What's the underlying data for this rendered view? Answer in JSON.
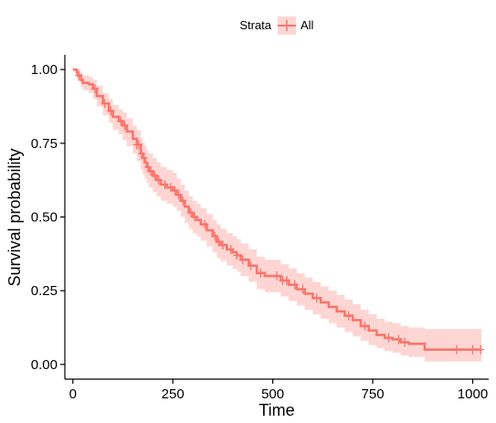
{
  "chart_data": {
    "type": "line",
    "subtype": "kaplan-meier step curve with confidence band and censor marks",
    "xlabel": "Time",
    "ylabel": "Survival probability",
    "xlim": [
      -20,
      1040
    ],
    "ylim": [
      -0.05,
      1.05
    ],
    "x_ticks": [
      0,
      250,
      500,
      750,
      1000
    ],
    "x_tick_labels": [
      "0",
      "250",
      "500",
      "750",
      "1000"
    ],
    "y_ticks": [
      0.0,
      0.25,
      0.5,
      0.75,
      1.0
    ],
    "y_tick_labels": [
      "0.00",
      "0.25",
      "0.50",
      "0.75",
      "1.00"
    ],
    "grid": false,
    "legend": {
      "position": "top",
      "title": "Strata",
      "entries": [
        "All"
      ]
    },
    "series": [
      {
        "name": "All",
        "color": "#F8766D",
        "band_color": "#F8766D",
        "band_opacity": 0.3,
        "x": [
          0,
          10,
          12,
          20,
          25,
          40,
          50,
          60,
          75,
          90,
          100,
          115,
          125,
          135,
          150,
          160,
          170,
          175,
          180,
          185,
          190,
          200,
          210,
          220,
          235,
          250,
          260,
          270,
          280,
          290,
          300,
          310,
          320,
          335,
          350,
          360,
          370,
          385,
          400,
          410,
          420,
          440,
          460,
          480,
          500,
          520,
          540,
          560,
          580,
          600,
          620,
          640,
          660,
          680,
          700,
          720,
          740,
          760,
          780,
          800,
          820,
          840,
          880,
          1000,
          1022
        ],
        "y": [
          1.0,
          0.99,
          0.98,
          0.965,
          0.955,
          0.95,
          0.935,
          0.91,
          0.885,
          0.86,
          0.84,
          0.825,
          0.81,
          0.79,
          0.765,
          0.745,
          0.715,
          0.7,
          0.685,
          0.67,
          0.655,
          0.64,
          0.625,
          0.61,
          0.6,
          0.59,
          0.575,
          0.555,
          0.535,
          0.515,
          0.5,
          0.49,
          0.475,
          0.455,
          0.435,
          0.415,
          0.405,
          0.39,
          0.38,
          0.37,
          0.355,
          0.335,
          0.31,
          0.3,
          0.3,
          0.285,
          0.27,
          0.255,
          0.24,
          0.225,
          0.21,
          0.195,
          0.18,
          0.165,
          0.15,
          0.13,
          0.115,
          0.1,
          0.09,
          0.085,
          0.075,
          0.07,
          0.05,
          0.05,
          0.05
        ],
        "lower": [
          1.0,
          0.97,
          0.96,
          0.94,
          0.93,
          0.92,
          0.9,
          0.875,
          0.845,
          0.82,
          0.795,
          0.78,
          0.76,
          0.74,
          0.715,
          0.69,
          0.66,
          0.645,
          0.63,
          0.615,
          0.6,
          0.585,
          0.57,
          0.555,
          0.545,
          0.535,
          0.52,
          0.5,
          0.48,
          0.46,
          0.445,
          0.435,
          0.42,
          0.4,
          0.38,
          0.36,
          0.35,
          0.335,
          0.325,
          0.315,
          0.3,
          0.28,
          0.255,
          0.245,
          0.245,
          0.23,
          0.215,
          0.2,
          0.185,
          0.17,
          0.155,
          0.14,
          0.125,
          0.11,
          0.095,
          0.08,
          0.065,
          0.055,
          0.045,
          0.04,
          0.03,
          0.025,
          0.01,
          0.01,
          0.01
        ],
        "upper": [
          1.0,
          1.0,
          1.0,
          0.99,
          0.98,
          0.975,
          0.965,
          0.945,
          0.92,
          0.9,
          0.88,
          0.865,
          0.855,
          0.835,
          0.81,
          0.795,
          0.77,
          0.755,
          0.74,
          0.725,
          0.715,
          0.7,
          0.685,
          0.67,
          0.66,
          0.65,
          0.63,
          0.61,
          0.59,
          0.57,
          0.555,
          0.545,
          0.53,
          0.51,
          0.49,
          0.475,
          0.46,
          0.445,
          0.435,
          0.425,
          0.41,
          0.39,
          0.365,
          0.355,
          0.355,
          0.34,
          0.325,
          0.31,
          0.295,
          0.28,
          0.265,
          0.25,
          0.235,
          0.22,
          0.205,
          0.185,
          0.17,
          0.155,
          0.145,
          0.14,
          0.13,
          0.125,
          0.12,
          0.12,
          0.12
        ],
        "censor_times": [
          15,
          55,
          80,
          95,
          120,
          130,
          160,
          165,
          172,
          178,
          188,
          195,
          205,
          215,
          230,
          245,
          255,
          265,
          275,
          295,
          305,
          330,
          355,
          365,
          375,
          395,
          410,
          425,
          445,
          470,
          510,
          525,
          535,
          555,
          575,
          610,
          690,
          730,
          790,
          815,
          830,
          960,
          1000,
          1020
        ]
      }
    ]
  }
}
